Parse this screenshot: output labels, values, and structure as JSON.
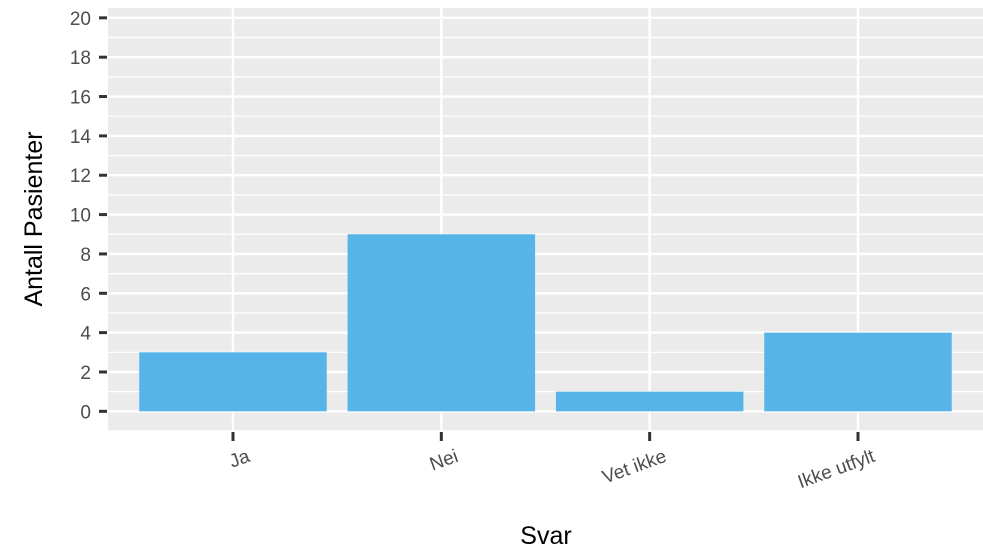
{
  "chart_data": {
    "type": "bar",
    "categories": [
      "Ja",
      "Nei",
      "Vet ikke",
      "Ikke utfylt"
    ],
    "values": [
      3,
      9,
      1,
      4
    ],
    "title": "",
    "xlabel": "Svar",
    "ylabel": "Antall Pasienter",
    "ylim": [
      -1,
      20.5
    ],
    "yticks": [
      "0",
      "2",
      "4",
      "6",
      "8",
      "10",
      "12",
      "14",
      "16",
      "18",
      "20"
    ],
    "ytick_values": [
      0,
      2,
      4,
      6,
      8,
      10,
      12,
      14,
      16,
      18,
      20
    ],
    "grid": true,
    "minor_grid": true,
    "legend": "none",
    "colors": {
      "bar": "#56b4e9",
      "panel_background": "#ebebeb",
      "grid_major": "#ffffff",
      "grid_minor": "#ffffff",
      "tick": "#333333"
    }
  }
}
